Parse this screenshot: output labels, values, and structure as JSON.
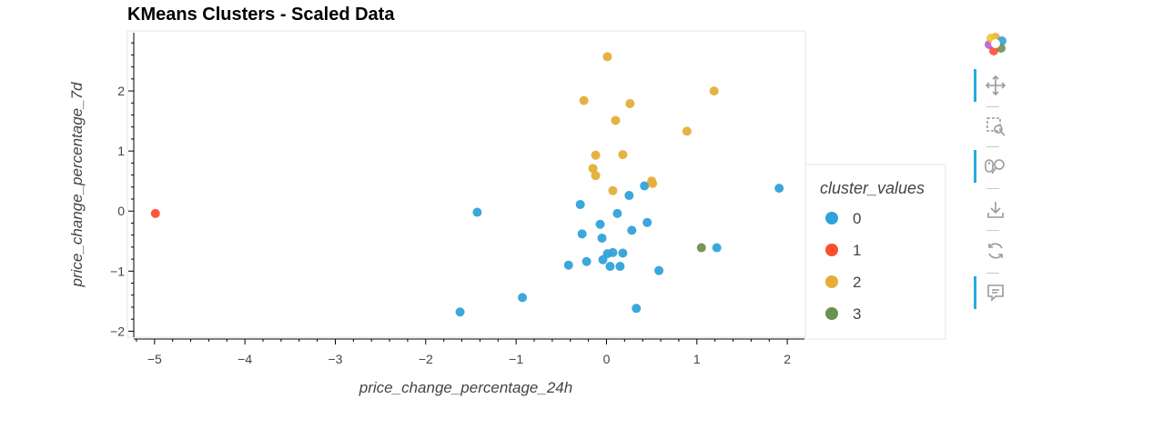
{
  "chart_data": {
    "type": "scatter",
    "title": "KMeans Clusters - Scaled Data",
    "xlabel": "price_change_percentage_24h",
    "ylabel": "price_change_percentage_7d",
    "xlim": [
      -5.3,
      2.2
    ],
    "ylim": [
      -2.1,
      3.0
    ],
    "xticks": [
      -5,
      -4,
      -3,
      -2,
      -1,
      0,
      1,
      2
    ],
    "yticks": [
      -2,
      -1,
      0,
      1,
      2
    ],
    "xtick_labels": [
      "−5",
      "−4",
      "−3",
      "−2",
      "−1",
      "0",
      "1",
      "2"
    ],
    "ytick_labels": [
      "−2",
      "−1",
      "0",
      "1",
      "2"
    ],
    "grid": false,
    "legend": {
      "title": "cluster_values",
      "placement": "right"
    },
    "series": [
      {
        "name": "0",
        "color": "#30a2da",
        "points": [
          [
            -1.43,
            -0.02
          ],
          [
            -1.62,
            -1.68
          ],
          [
            -0.93,
            -1.44
          ],
          [
            -0.42,
            -0.9
          ],
          [
            -0.22,
            -0.84
          ],
          [
            -0.29,
            0.11
          ],
          [
            -0.27,
            -0.38
          ],
          [
            -0.07,
            -0.22
          ],
          [
            -0.05,
            -0.45
          ],
          [
            -0.04,
            -0.81
          ],
          [
            0.01,
            -0.71
          ],
          [
            0.04,
            -0.92
          ],
          [
            0.07,
            -0.69
          ],
          [
            0.12,
            -0.04
          ],
          [
            0.15,
            -0.92
          ],
          [
            0.18,
            -0.7
          ],
          [
            0.25,
            0.26
          ],
          [
            0.28,
            -0.32
          ],
          [
            0.33,
            -1.62
          ],
          [
            0.42,
            0.42
          ],
          [
            0.45,
            -0.19
          ],
          [
            0.58,
            -0.99
          ],
          [
            1.22,
            -0.61
          ],
          [
            1.91,
            0.38
          ]
        ]
      },
      {
        "name": "1",
        "color": "#fc4f30",
        "points": [
          [
            -4.99,
            -0.04
          ]
        ]
      },
      {
        "name": "2",
        "color": "#e5ae38",
        "points": [
          [
            0.01,
            2.57
          ],
          [
            -0.25,
            1.84
          ],
          [
            0.26,
            1.79
          ],
          [
            1.19,
            2.0
          ],
          [
            0.1,
            1.51
          ],
          [
            0.89,
            1.33
          ],
          [
            -0.12,
            0.93
          ],
          [
            0.18,
            0.94
          ],
          [
            -0.15,
            0.71
          ],
          [
            -0.12,
            0.59
          ],
          [
            0.51,
            0.46
          ],
          [
            0.5,
            0.5
          ],
          [
            0.07,
            0.34
          ]
        ]
      },
      {
        "name": "3",
        "color": "#6d904f",
        "points": [
          [
            1.05,
            -0.61
          ]
        ]
      }
    ]
  },
  "toolbar": {
    "logo": "bokeh-logo-icon",
    "tools": [
      {
        "icon": "pan-icon",
        "active": true
      },
      {
        "icon": "box-zoom-icon",
        "active": false
      },
      {
        "icon": "wheel-zoom-icon",
        "active": true
      },
      {
        "icon": "save-icon",
        "active": false
      },
      {
        "icon": "reset-icon",
        "active": false
      },
      {
        "icon": "hover-icon",
        "active": true
      }
    ]
  }
}
